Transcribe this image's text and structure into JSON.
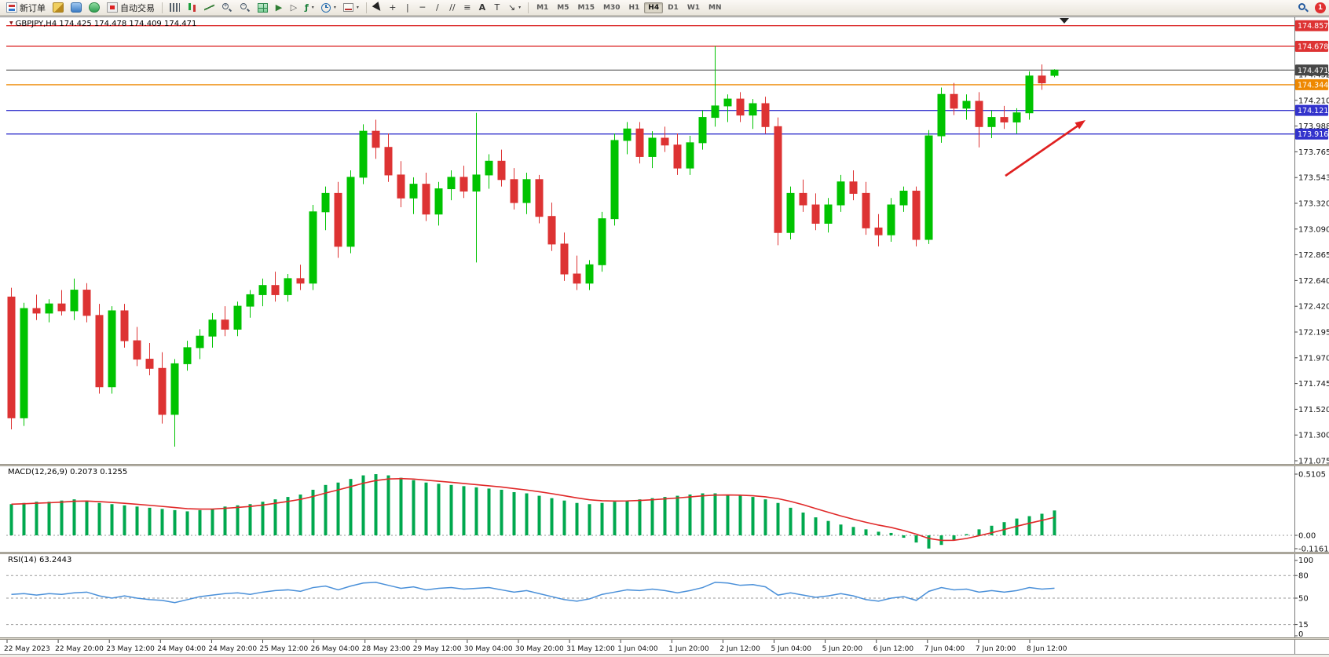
{
  "toolbar": {
    "new_order_label": "新订单",
    "auto_trading_label": "自动交易",
    "icon_buttons_left": [
      "hammer",
      "profile",
      "support"
    ],
    "chart_buttons": [
      "bar-chart",
      "candlesticks",
      "line-chart",
      "zoom-in",
      "zoom-out",
      "tile-windows",
      "auto-scroll",
      "chart-shift",
      "indicators",
      "periods",
      "templates"
    ],
    "draw_buttons": [
      "cursor",
      "crosshair",
      "vertical-line",
      "horizontal-line",
      "trendline",
      "equidistant-channel",
      "fibonacci",
      "text",
      "label",
      "arrows"
    ],
    "timeframes": [
      "M1",
      "M5",
      "M15",
      "M30",
      "H1",
      "H4",
      "D1",
      "W1",
      "MN"
    ],
    "active_timeframe": "H4",
    "notification_badge": "1"
  },
  "chart_data": {
    "type": "candlestick",
    "symbol": "GBPJPY",
    "timeframe": "H4",
    "title": "GBPJPY,H4 174.425 174.478 174.409 174.471",
    "current_ohlc": {
      "open": 174.425,
      "high": 174.478,
      "low": 174.409,
      "close": 174.471
    },
    "bull_color": "#00c300",
    "bear_color": "#dd3333",
    "y_axis_ticks": [
      "174.432",
      "174.210",
      "173.988",
      "173.765",
      "173.543",
      "173.320",
      "173.090",
      "172.865",
      "172.640",
      "172.420",
      "172.195",
      "171.970",
      "171.745",
      "171.520",
      "171.300",
      "171.075"
    ],
    "price_lines": [
      {
        "price": 174.857,
        "label": "174.857",
        "color": "#dd3333"
      },
      {
        "price": 174.678,
        "label": "174.678",
        "color": "#dd3333"
      },
      {
        "price": 174.344,
        "label": "174.344",
        "color": "#ee8800"
      },
      {
        "price": 174.121,
        "label": "174.121",
        "color": "#3333cc"
      },
      {
        "price": 173.916,
        "label": "173.916",
        "color": "#3333cc"
      }
    ],
    "current_price": {
      "value": 174.471,
      "label": "174.471",
      "color": "#474747"
    },
    "x_labels": [
      "22 May 2023",
      "22 May 20:00",
      "23 May 12:00",
      "24 May 04:00",
      "24 May 20:00",
      "25 May 12:00",
      "26 May 04:00",
      "28 May 23:00",
      "29 May 12:00",
      "30 May 04:00",
      "30 May 20:00",
      "31 May 12:00",
      "1 Jun 04:00",
      "1 Jun 20:00",
      "2 Jun 12:00",
      "5 Jun 04:00",
      "5 Jun 20:00",
      "6 Jun 12:00",
      "7 Jun 04:00",
      "7 Jun 20:00",
      "8 Jun 12:00"
    ],
    "candles": [
      [
        172.5,
        172.58,
        171.35,
        171.45
      ],
      [
        171.45,
        172.45,
        171.38,
        172.4
      ],
      [
        172.4,
        172.52,
        172.3,
        172.36
      ],
      [
        172.36,
        172.48,
        172.28,
        172.44
      ],
      [
        172.44,
        172.56,
        172.34,
        172.38
      ],
      [
        172.38,
        172.66,
        172.3,
        172.56
      ],
      [
        172.56,
        172.62,
        172.28,
        172.34
      ],
      [
        172.34,
        172.44,
        171.66,
        171.72
      ],
      [
        171.72,
        172.42,
        171.66,
        172.38
      ],
      [
        172.38,
        172.44,
        172.06,
        172.12
      ],
      [
        172.12,
        172.24,
        171.9,
        171.96
      ],
      [
        171.96,
        172.1,
        171.82,
        171.88
      ],
      [
        171.88,
        172.02,
        171.4,
        171.48
      ],
      [
        171.48,
        171.96,
        171.2,
        171.92
      ],
      [
        171.92,
        172.12,
        171.86,
        172.06
      ],
      [
        172.06,
        172.22,
        171.96,
        172.16
      ],
      [
        172.16,
        172.36,
        172.06,
        172.3
      ],
      [
        172.3,
        172.42,
        172.16,
        172.22
      ],
      [
        172.22,
        172.46,
        172.16,
        172.42
      ],
      [
        172.42,
        172.56,
        172.32,
        172.52
      ],
      [
        172.52,
        172.66,
        172.42,
        172.6
      ],
      [
        172.6,
        172.72,
        172.46,
        172.52
      ],
      [
        172.52,
        172.7,
        172.46,
        172.66
      ],
      [
        172.66,
        172.78,
        172.56,
        172.62
      ],
      [
        172.62,
        173.3,
        172.56,
        173.24
      ],
      [
        173.24,
        173.46,
        173.08,
        173.4
      ],
      [
        173.4,
        173.5,
        172.84,
        172.94
      ],
      [
        172.94,
        173.6,
        172.88,
        173.54
      ],
      [
        173.54,
        174.0,
        173.48,
        173.94
      ],
      [
        173.94,
        174.04,
        173.7,
        173.8
      ],
      [
        173.8,
        173.92,
        173.5,
        173.56
      ],
      [
        173.56,
        173.68,
        173.28,
        173.36
      ],
      [
        173.36,
        173.54,
        173.22,
        173.48
      ],
      [
        173.48,
        173.58,
        173.16,
        173.22
      ],
      [
        173.22,
        173.5,
        173.12,
        173.44
      ],
      [
        173.44,
        173.6,
        173.34,
        173.54
      ],
      [
        173.54,
        173.64,
        173.36,
        173.42
      ],
      [
        173.42,
        174.1,
        172.8,
        173.56
      ],
      [
        173.56,
        173.74,
        173.44,
        173.68
      ],
      [
        173.68,
        173.78,
        173.46,
        173.52
      ],
      [
        173.52,
        173.62,
        173.26,
        173.32
      ],
      [
        173.32,
        173.58,
        173.22,
        173.52
      ],
      [
        173.52,
        173.56,
        173.14,
        173.2
      ],
      [
        173.2,
        173.32,
        172.9,
        172.96
      ],
      [
        172.96,
        173.06,
        172.64,
        172.7
      ],
      [
        172.7,
        172.86,
        172.56,
        172.62
      ],
      [
        172.62,
        172.82,
        172.56,
        172.78
      ],
      [
        172.78,
        173.24,
        172.72,
        173.18
      ],
      [
        173.18,
        173.92,
        173.12,
        173.86
      ],
      [
        173.86,
        174.02,
        173.74,
        173.96
      ],
      [
        173.96,
        174.02,
        173.66,
        173.72
      ],
      [
        173.72,
        173.94,
        173.62,
        173.88
      ],
      [
        173.88,
        173.98,
        173.76,
        173.82
      ],
      [
        173.82,
        173.92,
        173.56,
        173.62
      ],
      [
        173.62,
        173.9,
        173.56,
        173.84
      ],
      [
        173.84,
        174.12,
        173.78,
        174.06
      ],
      [
        174.06,
        174.68,
        173.98,
        174.16
      ],
      [
        174.16,
        174.26,
        174.02,
        174.22
      ],
      [
        174.22,
        174.28,
        174.02,
        174.08
      ],
      [
        174.08,
        174.22,
        173.96,
        174.18
      ],
      [
        174.18,
        174.24,
        173.92,
        173.98
      ],
      [
        173.98,
        174.06,
        172.95,
        173.06
      ],
      [
        173.06,
        173.46,
        173.0,
        173.4
      ],
      [
        173.4,
        173.52,
        173.24,
        173.3
      ],
      [
        173.3,
        173.4,
        173.08,
        173.14
      ],
      [
        173.14,
        173.36,
        173.06,
        173.3
      ],
      [
        173.3,
        173.56,
        173.24,
        173.5
      ],
      [
        173.5,
        173.6,
        173.34,
        173.4
      ],
      [
        173.4,
        173.5,
        173.04,
        173.1
      ],
      [
        173.1,
        173.22,
        172.94,
        173.04
      ],
      [
        173.04,
        173.36,
        172.98,
        173.3
      ],
      [
        173.3,
        173.46,
        173.24,
        173.42
      ],
      [
        173.42,
        173.46,
        172.94,
        173.0
      ],
      [
        173.0,
        173.95,
        172.96,
        173.9
      ],
      [
        173.9,
        174.32,
        173.84,
        174.26
      ],
      [
        174.26,
        174.36,
        174.08,
        174.14
      ],
      [
        174.14,
        174.26,
        174.04,
        174.2
      ],
      [
        174.2,
        174.28,
        173.8,
        173.98
      ],
      [
        173.98,
        174.12,
        173.88,
        174.06
      ],
      [
        174.06,
        174.16,
        173.96,
        174.02
      ],
      [
        174.02,
        174.14,
        173.92,
        174.1
      ],
      [
        174.1,
        174.46,
        174.04,
        174.42
      ],
      [
        174.42,
        174.52,
        174.3,
        174.36
      ],
      [
        174.425,
        174.478,
        174.409,
        174.471
      ]
    ],
    "annotation_arrow": {
      "color": "#e02020"
    }
  },
  "macd": {
    "label": "MACD(12,26,9) 0.2073 0.1255",
    "name": "MACD(12,26,9)",
    "value_main": "0.2073",
    "value_signal": "0.1255",
    "scale_labels": [
      "0.5105",
      "0.00",
      "-0.1161"
    ],
    "scale_values": [
      0.5105,
      0,
      -0.1161
    ],
    "histogram_color": "#00a84e",
    "signal_color": "#e02828",
    "values": [
      0.26,
      0.27,
      0.28,
      0.28,
      0.29,
      0.3,
      0.29,
      0.27,
      0.26,
      0.25,
      0.24,
      0.23,
      0.22,
      0.21,
      0.2,
      0.21,
      0.22,
      0.24,
      0.25,
      0.26,
      0.28,
      0.3,
      0.32,
      0.34,
      0.38,
      0.42,
      0.44,
      0.47,
      0.5,
      0.51,
      0.5,
      0.48,
      0.46,
      0.44,
      0.43,
      0.42,
      0.41,
      0.4,
      0.39,
      0.38,
      0.36,
      0.35,
      0.33,
      0.31,
      0.29,
      0.27,
      0.26,
      0.27,
      0.28,
      0.29,
      0.3,
      0.31,
      0.32,
      0.33,
      0.34,
      0.35,
      0.35,
      0.34,
      0.33,
      0.32,
      0.3,
      0.27,
      0.23,
      0.19,
      0.15,
      0.12,
      0.09,
      0.07,
      0.05,
      0.03,
      0.02,
      -0.02,
      -0.06,
      -0.11,
      -0.08,
      -0.04,
      0.01,
      0.05,
      0.08,
      0.11,
      0.14,
      0.16,
      0.18,
      0.2073
    ]
  },
  "rsi": {
    "label": "RSI(14) 63.2443",
    "name": "RSI(14)",
    "value": "63.2443",
    "scale_labels": [
      "100",
      "80",
      "50",
      "15",
      "0"
    ],
    "scale_values": [
      100,
      80,
      50,
      15,
      0
    ],
    "levels": [
      80,
      50,
      15
    ],
    "line_color": "#4a90d9",
    "values": [
      55,
      56,
      54,
      56,
      55,
      57,
      58,
      53,
      50,
      53,
      50,
      48,
      47,
      44,
      48,
      52,
      54,
      56,
      57,
      55,
      58,
      60,
      61,
      59,
      64,
      66,
      61,
      66,
      70,
      71,
      67,
      63,
      65,
      61,
      63,
      64,
      62,
      63,
      64,
      61,
      58,
      60,
      56,
      52,
      48,
      46,
      49,
      55,
      58,
      61,
      60,
      62,
      60,
      57,
      60,
      64,
      71,
      70,
      67,
      68,
      65,
      54,
      57,
      54,
      51,
      53,
      56,
      53,
      48,
      46,
      50,
      52,
      47,
      59,
      64,
      61,
      62,
      58,
      60,
      58,
      60,
      64,
      62,
      63.2
    ]
  }
}
